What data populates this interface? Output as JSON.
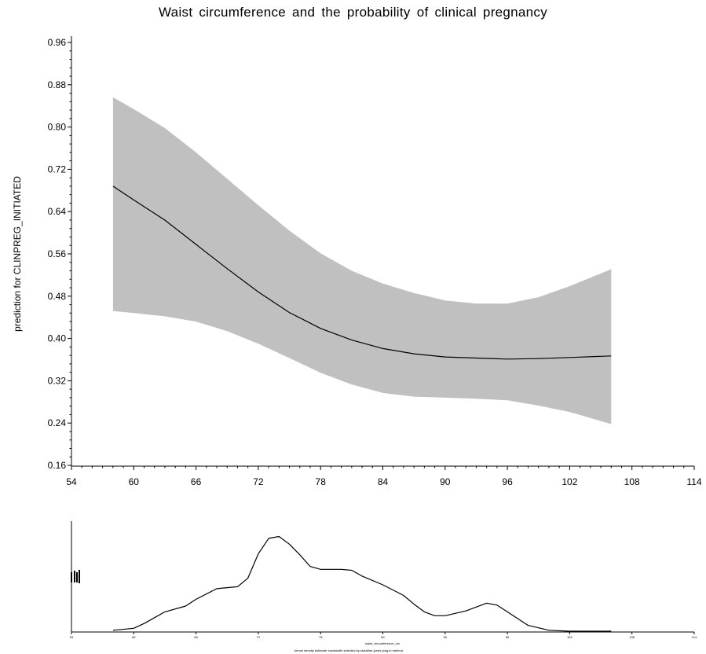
{
  "title": "Waist circumference and the probability of clinical pregnancy",
  "chart_data": [
    {
      "type": "line",
      "title": "Waist circumference and the probability of clinical pregnancy",
      "xlabel": "",
      "ylabel": "prediction for CLINPREG_INITIATED",
      "xlim": [
        54,
        114
      ],
      "ylim": [
        0.16,
        0.96
      ],
      "x_ticks": [
        "54",
        "60",
        "66",
        "72",
        "78",
        "84",
        "90",
        "96",
        "102",
        "108",
        "114"
      ],
      "y_ticks": [
        "0.16",
        "0.24",
        "0.32",
        "0.40",
        "0.48",
        "0.56",
        "0.64",
        "0.72",
        "0.80",
        "0.88",
        "0.96"
      ],
      "grid": false,
      "series": [
        {
          "x": [
            58,
            60,
            63,
            66,
            69,
            72,
            75,
            78,
            81,
            84,
            87,
            90,
            93,
            96,
            99,
            102,
            106
          ],
          "values": [
            0.688,
            0.662,
            0.624,
            0.578,
            0.532,
            0.488,
            0.449,
            0.419,
            0.397,
            0.381,
            0.371,
            0.365,
            0.363,
            0.361,
            0.362,
            0.364,
            0.367
          ],
          "lower": [
            0.452,
            0.448,
            0.442,
            0.432,
            0.414,
            0.39,
            0.363,
            0.335,
            0.313,
            0.297,
            0.29,
            0.288,
            0.286,
            0.283,
            0.273,
            0.261,
            0.238
          ],
          "upper": [
            0.856,
            0.834,
            0.798,
            0.752,
            0.702,
            0.652,
            0.604,
            0.561,
            0.528,
            0.504,
            0.486,
            0.472,
            0.466,
            0.466,
            0.478,
            0.499,
            0.531
          ],
          "color": "#000000",
          "band_color": "#c0c0c0"
        }
      ]
    },
    {
      "type": "area",
      "xlabel": "waist_circumference_cm",
      "ylabel": "",
      "xlim": [
        54,
        114
      ],
      "ylim": [
        0,
        1
      ],
      "x_ticks": [
        "54",
        "60",
        "66",
        "72",
        "78",
        "84",
        "90",
        "96",
        "102",
        "108",
        "114"
      ],
      "footnote": "kernel density estimate; bandwidth selected by sheather-jones plug-in method",
      "series": [
        {
          "x": [
            58,
            60,
            61,
            62,
            63,
            65,
            66,
            68,
            70,
            71,
            72,
            73,
            74,
            75,
            76,
            77,
            78,
            79,
            80,
            81,
            82,
            84,
            86,
            87,
            88,
            89,
            90,
            92,
            94,
            95,
            96,
            97,
            98,
            100,
            102,
            103,
            104,
            106
          ],
          "values": [
            0.01,
            0.03,
            0.08,
            0.14,
            0.2,
            0.26,
            0.33,
            0.44,
            0.46,
            0.55,
            0.8,
            0.96,
            0.98,
            0.9,
            0.79,
            0.67,
            0.64,
            0.64,
            0.64,
            0.63,
            0.57,
            0.48,
            0.37,
            0.28,
            0.2,
            0.16,
            0.16,
            0.21,
            0.29,
            0.27,
            0.2,
            0.13,
            0.06,
            0.01,
            0,
            0,
            0,
            0
          ],
          "color": "#000000"
        }
      ]
    }
  ]
}
